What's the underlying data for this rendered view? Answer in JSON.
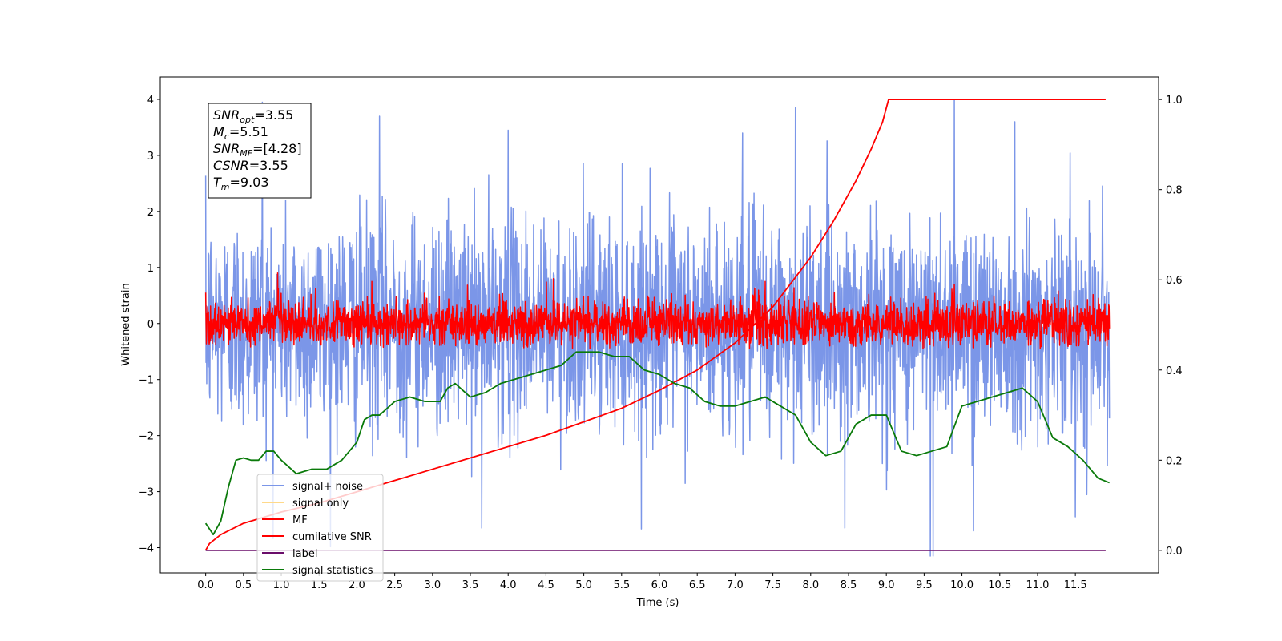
{
  "chart_data": {
    "type": "line",
    "xlabel": "Time (s)",
    "ylabel": "Whitened strain",
    "xlim": [
      -0.6,
      12.6
    ],
    "ylim": [
      -4.45,
      4.4
    ],
    "ylim_right": [
      -0.05,
      1.05
    ],
    "x_ticks": [
      "0.0",
      "0.5",
      "1.0",
      "1.5",
      "2.0",
      "2.5",
      "3.0",
      "3.5",
      "4.0",
      "4.5",
      "5.0",
      "5.5",
      "6.0",
      "6.5",
      "7.0",
      "7.5",
      "8.0",
      "8.5",
      "9.0",
      "9.5",
      "10.0",
      "10.5",
      "11.0",
      "11.5"
    ],
    "y_ticks": [
      "4",
      "3",
      "2",
      "1",
      "0",
      "−1",
      "−2",
      "−3",
      "−4"
    ],
    "y_ticks_right": [
      "1.0",
      "0.8",
      "0.6",
      "0.4",
      "0.2",
      "0.0"
    ],
    "annotation": {
      "lines": [
        {
          "base": "SNR",
          "sub": "opt",
          "value": "=3.55"
        },
        {
          "base": "M",
          "sub": "c",
          "value": "=5.51"
        },
        {
          "base": "SNR",
          "sub": "MF",
          "value": "=[4.28]"
        },
        {
          "base": "CSNR",
          "sub": "",
          "value": "=3.55"
        },
        {
          "base": "T",
          "sub": "m",
          "value": "=9.03"
        }
      ]
    },
    "legend": {
      "placement": "lower-left",
      "entries": [
        {
          "label": "signal+ noise",
          "color": "#7b96e8"
        },
        {
          "label": "signal only",
          "color": "#ffd98a"
        },
        {
          "label": "MF",
          "color": "#ff0000"
        },
        {
          "label": "cumilative SNR",
          "color": "#ff0000"
        },
        {
          "label": "label",
          "color": "#6a0d6a"
        },
        {
          "label": "signal statistics",
          "color": "#0a7a0a"
        }
      ]
    },
    "series": [
      {
        "name": "signal+ noise",
        "axis": "left",
        "color": "#7b96e8",
        "kind": "noise",
        "x_range": [
          0,
          11.95
        ],
        "mean": 0.0,
        "std": 1.0,
        "min": -4.15,
        "max": 4.0,
        "peaks": [
          [
            0.75,
            3.95
          ],
          [
            2.3,
            3.7
          ],
          [
            4.0,
            3.45
          ],
          [
            7.8,
            3.85
          ],
          [
            9.9,
            4.0
          ],
          [
            9.58,
            -4.15
          ],
          [
            9.62,
            -4.15
          ],
          [
            3.65,
            -3.65
          ],
          [
            8.45,
            -3.65
          ],
          [
            10.15,
            -3.7
          ],
          [
            7.1,
            3.4
          ],
          [
            10.7,
            3.6
          ],
          [
            11.5,
            -3.45
          ]
        ]
      },
      {
        "name": "MF",
        "axis": "left",
        "color": "#ff0000",
        "kind": "noise",
        "x_range": [
          0,
          11.95
        ],
        "mean": 0.0,
        "std": 0.22,
        "min": -0.45,
        "max": 0.9,
        "peaks": [
          [
            0.0,
            0.55
          ],
          [
            0.95,
            0.9
          ],
          [
            2.2,
            0.75
          ],
          [
            4.6,
            0.8
          ],
          [
            7.4,
            0.75
          ],
          [
            9.9,
            0.7
          ]
        ]
      },
      {
        "name": "cumilative SNR",
        "axis": "right",
        "color": "#ff0000",
        "kind": "line",
        "x": [
          0.0,
          0.05,
          0.2,
          0.5,
          1.0,
          1.5,
          2.0,
          2.5,
          3.0,
          3.5,
          4.0,
          4.5,
          5.0,
          5.5,
          6.0,
          6.5,
          7.0,
          7.5,
          8.0,
          8.3,
          8.6,
          8.8,
          8.95,
          9.03,
          11.9
        ],
        "y": [
          0.0,
          0.015,
          0.035,
          0.06,
          0.085,
          0.105,
          0.13,
          0.155,
          0.18,
          0.205,
          0.23,
          0.255,
          0.285,
          0.315,
          0.355,
          0.4,
          0.46,
          0.54,
          0.65,
          0.73,
          0.82,
          0.89,
          0.95,
          1.0,
          1.0
        ]
      },
      {
        "name": "label",
        "axis": "right",
        "color": "#6a0d6a",
        "kind": "line",
        "x": [
          0.0,
          11.9
        ],
        "y": [
          0.0,
          0.0
        ]
      },
      {
        "name": "signal statistics",
        "axis": "right",
        "color": "#0a7a0a",
        "kind": "line",
        "x": [
          0.0,
          0.1,
          0.2,
          0.3,
          0.4,
          0.5,
          0.6,
          0.7,
          0.8,
          0.9,
          1.0,
          1.2,
          1.4,
          1.6,
          1.8,
          2.0,
          2.1,
          2.2,
          2.3,
          2.5,
          2.7,
          2.9,
          3.1,
          3.2,
          3.3,
          3.5,
          3.7,
          3.9,
          4.1,
          4.3,
          4.5,
          4.7,
          4.9,
          5.0,
          5.2,
          5.4,
          5.6,
          5.8,
          6.0,
          6.2,
          6.4,
          6.6,
          6.8,
          7.0,
          7.2,
          7.4,
          7.6,
          7.8,
          8.0,
          8.2,
          8.4,
          8.6,
          8.8,
          9.0,
          9.2,
          9.4,
          9.6,
          9.8,
          10.0,
          10.2,
          10.4,
          10.6,
          10.8,
          11.0,
          11.2,
          11.4,
          11.6,
          11.8,
          11.95
        ],
        "y": [
          0.06,
          0.035,
          0.065,
          0.14,
          0.2,
          0.205,
          0.2,
          0.2,
          0.22,
          0.22,
          0.2,
          0.17,
          0.18,
          0.18,
          0.2,
          0.24,
          0.29,
          0.3,
          0.3,
          0.33,
          0.34,
          0.33,
          0.33,
          0.36,
          0.37,
          0.34,
          0.35,
          0.37,
          0.38,
          0.39,
          0.4,
          0.41,
          0.44,
          0.44,
          0.44,
          0.43,
          0.43,
          0.4,
          0.39,
          0.37,
          0.36,
          0.33,
          0.32,
          0.32,
          0.33,
          0.34,
          0.32,
          0.3,
          0.24,
          0.21,
          0.22,
          0.28,
          0.3,
          0.3,
          0.22,
          0.21,
          0.22,
          0.23,
          0.32,
          0.33,
          0.34,
          0.35,
          0.36,
          0.33,
          0.25,
          0.23,
          0.2,
          0.16,
          0.15
        ]
      }
    ]
  }
}
